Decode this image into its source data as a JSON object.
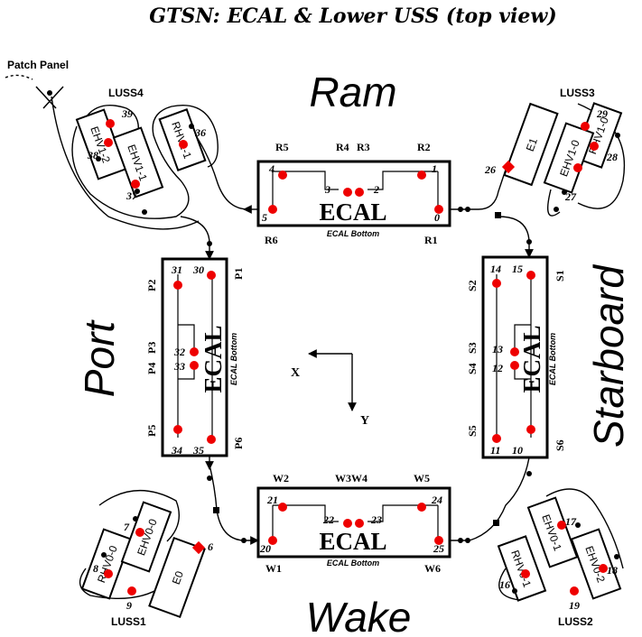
{
  "title": "GTSN: ECAL & Lower USS (top view)",
  "sides": {
    "ram": "Ram",
    "wake": "Wake",
    "port": "Port",
    "starboard": "Starboard"
  },
  "patch_panel": "Patch Panel",
  "axes": {
    "x": "X",
    "y": "Y"
  },
  "ecal": {
    "label": "ECAL",
    "bottom": "ECAL Bottom"
  },
  "ram_panel": {
    "labels": {
      "r1": "R1",
      "r2": "R2",
      "r3": "R3",
      "r4": "R4",
      "r5": "R5",
      "r6": "R6"
    },
    "nums": {
      "n0": "0",
      "n1": "1",
      "n2": "2",
      "n3": "3",
      "n4": "4",
      "n5": "5"
    }
  },
  "wake_panel": {
    "labels": {
      "w1": "W1",
      "w2": "W2",
      "w3w4": "W3W4",
      "w5": "W5",
      "w6": "W6"
    },
    "nums": {
      "n20": "20",
      "n21": "21",
      "n22": "22",
      "n23": "23",
      "n24": "24",
      "n25": "25"
    }
  },
  "port_panel": {
    "labels": {
      "p1": "P1",
      "p2": "P2",
      "p3": "P3",
      "p4": "P4",
      "p5": "P5",
      "p6": "P6"
    },
    "nums": {
      "n30": "30",
      "n31": "31",
      "n32": "32",
      "n33": "33",
      "n34": "34",
      "n35": "35"
    }
  },
  "starboard_panel": {
    "labels": {
      "s1": "S1",
      "s2": "S2",
      "s3": "S3",
      "s4": "S4",
      "s5": "S5",
      "s6": "S6"
    },
    "nums": {
      "n10": "10",
      "n11": "11",
      "n12": "12",
      "n13": "13",
      "n14": "14",
      "n15": "15"
    }
  },
  "luss4": {
    "name": "LUSS4",
    "boxes": {
      "ehv12": "EHV1-2",
      "ehv11": "EHV1-1",
      "rhv11": "RHV1-1"
    },
    "nums": {
      "n36": "36",
      "n37": "37",
      "n38": "38",
      "n39": "39"
    }
  },
  "luss3": {
    "name": "LUSS3",
    "boxes": {
      "e1": "E1",
      "rhv10": "RHV1-0",
      "ehv10": "EHV1-0"
    },
    "nums": {
      "n26": "26",
      "n27": "27",
      "n28": "28",
      "n29": "29"
    }
  },
  "luss1": {
    "name": "LUSS1",
    "boxes": {
      "rhv00": "RHV0-0",
      "ehv00": "EHV0-0",
      "e0": "E0"
    },
    "nums": {
      "n6": "6",
      "n7": "7",
      "n8": "8",
      "n9": "9"
    }
  },
  "luss2": {
    "name": "LUSS2",
    "boxes": {
      "ehv01": "EHV0-1",
      "rhv01": "RHV0-1",
      "ehv02": "EHV0-2"
    },
    "nums": {
      "n16": "16",
      "n17": "17",
      "n18": "18",
      "n19": "19"
    }
  },
  "colors": {
    "sensor": "#e00000",
    "outline": "#000000"
  }
}
